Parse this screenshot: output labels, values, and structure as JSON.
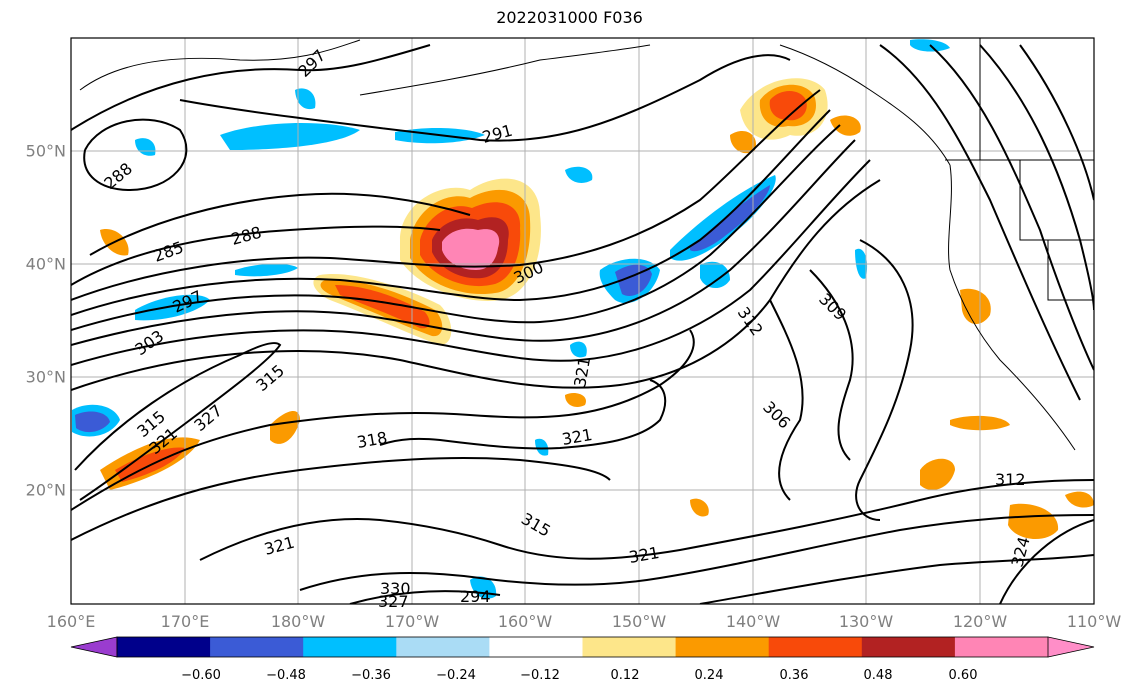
{
  "title": "2022031000 F036",
  "lon_labels": [
    "160°E",
    "170°E",
    "180°W",
    "170°W",
    "160°W",
    "150°W",
    "140°W",
    "130°W",
    "120°W",
    "110°W"
  ],
  "lat_labels": [
    "50°N",
    "40°N",
    "30°N",
    "20°N"
  ],
  "contour_labels": [
    "297",
    "291",
    "288",
    "288",
    "285",
    "297",
    "303",
    "300",
    "312",
    "309",
    "315",
    "321",
    "315",
    "327",
    "318",
    "321",
    "306",
    "321",
    "315",
    "321",
    "312",
    "321",
    "324",
    "330",
    "327",
    "294"
  ],
  "colorbar": {
    "ticks": [
      "−0.60",
      "−0.48",
      "−0.36",
      "−0.24",
      "−0.12",
      "0.12",
      "0.24",
      "0.36",
      "0.48",
      "0.60"
    ],
    "colors": [
      "#9a3ccf",
      "#00008b",
      "#3b5bd6",
      "#00bfff",
      "#aadcf5",
      "#ffffff",
      "#fde68a",
      "#fb9a00",
      "#f84a0a",
      "#b22222",
      "#ff85b5",
      "#ff8ec8"
    ]
  }
}
